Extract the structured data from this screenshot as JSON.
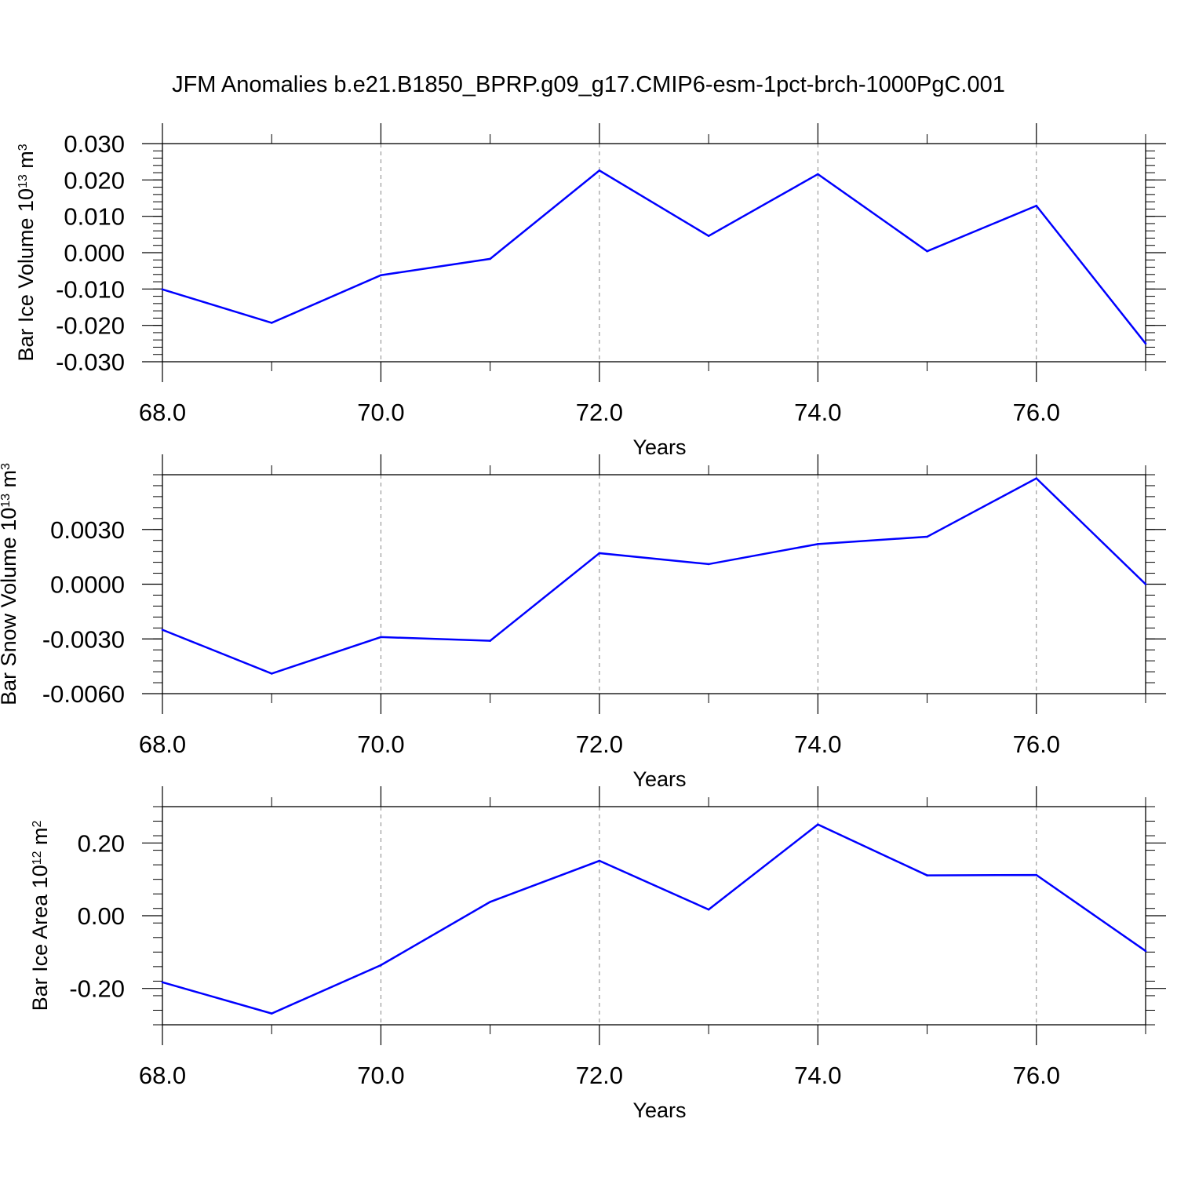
{
  "title": "JFM Anomalies b.e21.B1850_BPRP.g09_g17.CMIP6-esm-1pct-brch-1000PgC.001",
  "colors": {
    "line": "#0000ff",
    "axis": "#000000",
    "grid": "#888888"
  },
  "chart_data": [
    {
      "type": "line",
      "ylabel": "Bar Ice Volume 10",
      "ylabel_exp": "13",
      "ylabel_unit": " m",
      "ylabel_unit_exp": "3",
      "xlabel": "Years",
      "xlim": [
        68,
        77
      ],
      "ylim": [
        -0.03,
        0.03
      ],
      "grid": "vertical dashed",
      "xticks": [
        68,
        70,
        72,
        74,
        76
      ],
      "xtick_labels": [
        "68.0",
        "70.0",
        "72.0",
        "74.0",
        "76.0"
      ],
      "yticks": [
        -0.03,
        -0.02,
        -0.01,
        0.0,
        0.01,
        0.02,
        0.03
      ],
      "ytick_labels": [
        "-0.030",
        "-0.020",
        "-0.010",
        "0.000",
        "0.010",
        "0.020",
        "0.030"
      ],
      "x": [
        68,
        69,
        70,
        71,
        72,
        73,
        74,
        75,
        76,
        77
      ],
      "series": [
        {
          "values": [
            -0.0101,
            -0.0193,
            -0.0062,
            -0.0017,
            0.0226,
            0.0046,
            0.0216,
            0.0004,
            0.0129,
            -0.025
          ]
        }
      ]
    },
    {
      "type": "line",
      "ylabel": "Bar Snow Volume 10",
      "ylabel_exp": "13",
      "ylabel_unit": " m",
      "ylabel_unit_exp": "3",
      "xlabel": "Years",
      "xlim": [
        68,
        77
      ],
      "ylim": [
        -0.006,
        0.006
      ],
      "grid": "vertical dashed",
      "xticks": [
        68,
        70,
        72,
        74,
        76
      ],
      "xtick_labels": [
        "68.0",
        "70.0",
        "72.0",
        "74.0",
        "76.0"
      ],
      "yticks": [
        -0.006,
        -0.003,
        0.0,
        0.003
      ],
      "ytick_labels": [
        "-0.0060",
        "-0.0030",
        "0.0000",
        "0.0030"
      ],
      "x": [
        68,
        69,
        70,
        71,
        72,
        73,
        74,
        75,
        76,
        77
      ],
      "series": [
        {
          "values": [
            -0.0025,
            -0.0049,
            -0.0029,
            -0.0031,
            0.0017,
            0.0011,
            0.0022,
            0.0026,
            0.0058,
            0.0
          ]
        }
      ]
    },
    {
      "type": "line",
      "ylabel": "Bar Ice Area 10",
      "ylabel_exp": "12",
      "ylabel_unit": " m",
      "ylabel_unit_exp": "2",
      "xlabel": "Years",
      "xlim": [
        68,
        77
      ],
      "ylim": [
        -0.3,
        0.3
      ],
      "grid": "vertical dashed",
      "xticks": [
        68,
        70,
        72,
        74,
        76
      ],
      "xtick_labels": [
        "68.0",
        "70.0",
        "72.0",
        "74.0",
        "76.0"
      ],
      "yticks": [
        -0.2,
        0.0,
        0.2
      ],
      "ytick_labels": [
        "-0.20",
        "0.00",
        "0.20"
      ],
      "x": [
        68,
        69,
        70,
        71,
        72,
        73,
        74,
        75,
        76,
        77
      ],
      "series": [
        {
          "values": [
            -0.183,
            -0.269,
            -0.136,
            0.038,
            0.151,
            0.017,
            0.251,
            0.111,
            0.112,
            -0.097
          ]
        }
      ]
    }
  ]
}
